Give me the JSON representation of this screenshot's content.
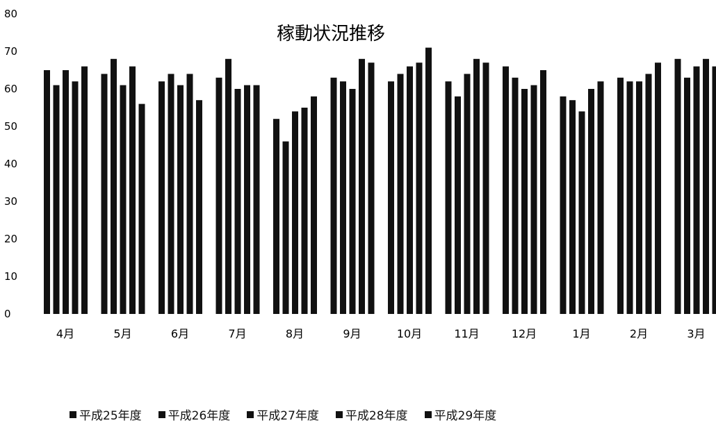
{
  "chart_data": {
    "type": "bar",
    "title": "稼動状況推移",
    "xlabel": "",
    "ylabel": "",
    "ylim": [
      0,
      80
    ],
    "yticks": [
      "0",
      "10",
      "20",
      "30",
      "40",
      "50",
      "60",
      "70",
      "80"
    ],
    "categories": [
      "4月",
      "5月",
      "6月",
      "7月",
      "8月",
      "9月",
      "10月",
      "11月",
      "12月",
      "1月",
      "2月",
      "3月"
    ],
    "series": [
      {
        "name": "平成25年度",
        "values": [
          65,
          64,
          62,
          63,
          52,
          63,
          62,
          62,
          66,
          58,
          63,
          68
        ]
      },
      {
        "name": "平成26年度",
        "values": [
          61,
          68,
          64,
          68,
          46,
          62,
          64,
          58,
          63,
          57,
          62,
          63
        ]
      },
      {
        "name": "平成27年度",
        "values": [
          65,
          61,
          61,
          60,
          54,
          60,
          66,
          64,
          60,
          54,
          62,
          66
        ]
      },
      {
        "name": "平成28年度",
        "values": [
          62,
          66,
          64,
          61,
          55,
          68,
          67,
          68,
          61,
          60,
          64,
          68
        ]
      },
      {
        "name": "平成29年度",
        "values": [
          66,
          56,
          57,
          61,
          58,
          67,
          71,
          67,
          65,
          62,
          67,
          66
        ]
      }
    ],
    "bar_color": "#111111",
    "grid": false,
    "legend_position": "bottom"
  }
}
